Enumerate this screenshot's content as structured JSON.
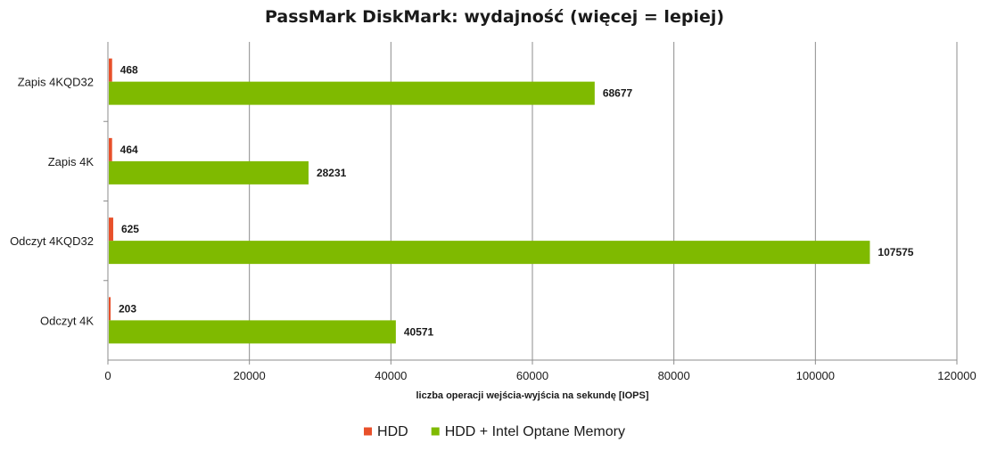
{
  "chart_data": {
    "type": "bar",
    "orientation": "horizontal",
    "title": "PassMark DiskMark: wydajność (więcej = lepiej)",
    "xlabel": "liczba operacji  wejścia-wyjścia  na sekundę [IOPS]",
    "ylabel": "",
    "categories": [
      "Zapis 4KQD32",
      "Zapis 4K",
      "Odczyt 4KQD32",
      "Odczyt 4K"
    ],
    "xlim": [
      0,
      120000
    ],
    "x_ticks": [
      0,
      20000,
      40000,
      60000,
      80000,
      100000,
      120000
    ],
    "x_tick_labels": [
      "0",
      "20000",
      "40000",
      "60000",
      "80000",
      "100000",
      "120000"
    ],
    "grid": "vertical",
    "legend_position": "bottom",
    "series": [
      {
        "name": "HDD",
        "color": "#e8502a",
        "values": [
          468,
          464,
          625,
          203
        ],
        "labels": [
          "468",
          "464",
          "625",
          "203"
        ]
      },
      {
        "name": "HDD + Intel Optane Memory",
        "color": "#7fba00",
        "values": [
          68677,
          28231,
          107575,
          40571
        ],
        "labels": [
          "68677",
          "28231",
          "107575",
          "40571"
        ]
      }
    ]
  }
}
